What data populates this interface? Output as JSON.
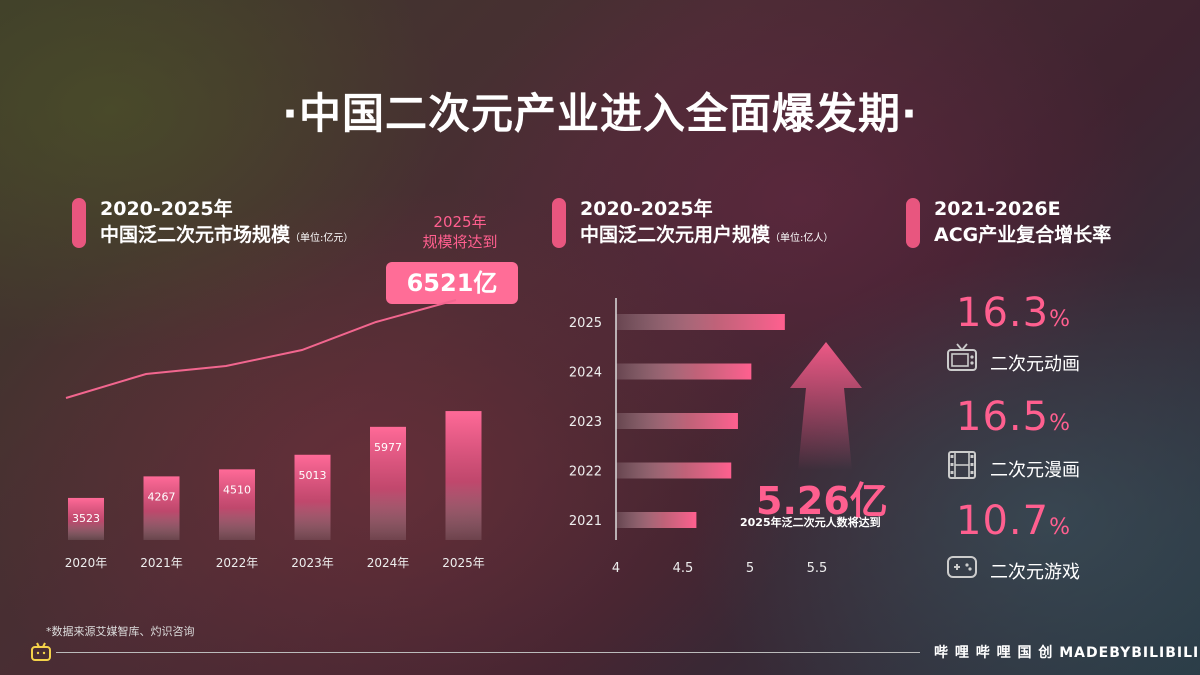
{
  "title": "·中国二次元产业进入全面爆发期·",
  "section1": {
    "line1": "2020-2025年",
    "line2": "中国泛二次元市场规模",
    "unit": "（单位:亿元）",
    "note_line1": "2025年",
    "note_line2": "规模将达到",
    "callout": "6521亿"
  },
  "section2": {
    "line1": "2020-2025年",
    "line2": "中国泛二次元用户规模",
    "unit": "（单位:亿人）",
    "highlight": "5.26亿",
    "highlight_note": "2025年泛二次元人数将达到"
  },
  "section3": {
    "line1": "2021-2026E",
    "line2": "ACG产业复合增长率",
    "items": [
      {
        "value": "16.3",
        "pct": "%",
        "label": "二次元动画",
        "icon": "tv-icon"
      },
      {
        "value": "16.5",
        "pct": "%",
        "label": "二次元漫画",
        "icon": "film-icon"
      },
      {
        "value": "10.7",
        "pct": "%",
        "label": "二次元游戏",
        "icon": "gamepad-icon"
      }
    ]
  },
  "chart_data": [
    {
      "type": "bar",
      "categories": [
        "2020年",
        "2021年",
        "2022年",
        "2023年",
        "2024年",
        "2025年"
      ],
      "values": [
        3523,
        4267,
        4510,
        5013,
        5977,
        6521
      ],
      "labels": [
        "3523",
        "4267",
        "4510",
        "5013",
        "5977",
        ""
      ],
      "title": "",
      "xlabel": "",
      "ylabel": "",
      "ylim": [
        0,
        7000
      ],
      "trend_line": true
    },
    {
      "type": "bar",
      "orientation": "horizontal",
      "categories": [
        "2025",
        "2024",
        "2023",
        "2022",
        "2021"
      ],
      "values": [
        5.26,
        5.01,
        4.91,
        4.86,
        4.6
      ],
      "xticks": [
        "4",
        "4.5",
        "5",
        "5.5"
      ],
      "xlim": [
        4,
        5.5
      ],
      "title": "",
      "xlabel": "",
      "ylabel": ""
    }
  ],
  "footnote": "*数据来源艾媒智库、灼识咨询",
  "brand": "哔 哩 哔 哩 国 创 MADEBYBILIBILI",
  "colors": {
    "accent": "#ff5f8f",
    "pill": "#e8567f"
  }
}
